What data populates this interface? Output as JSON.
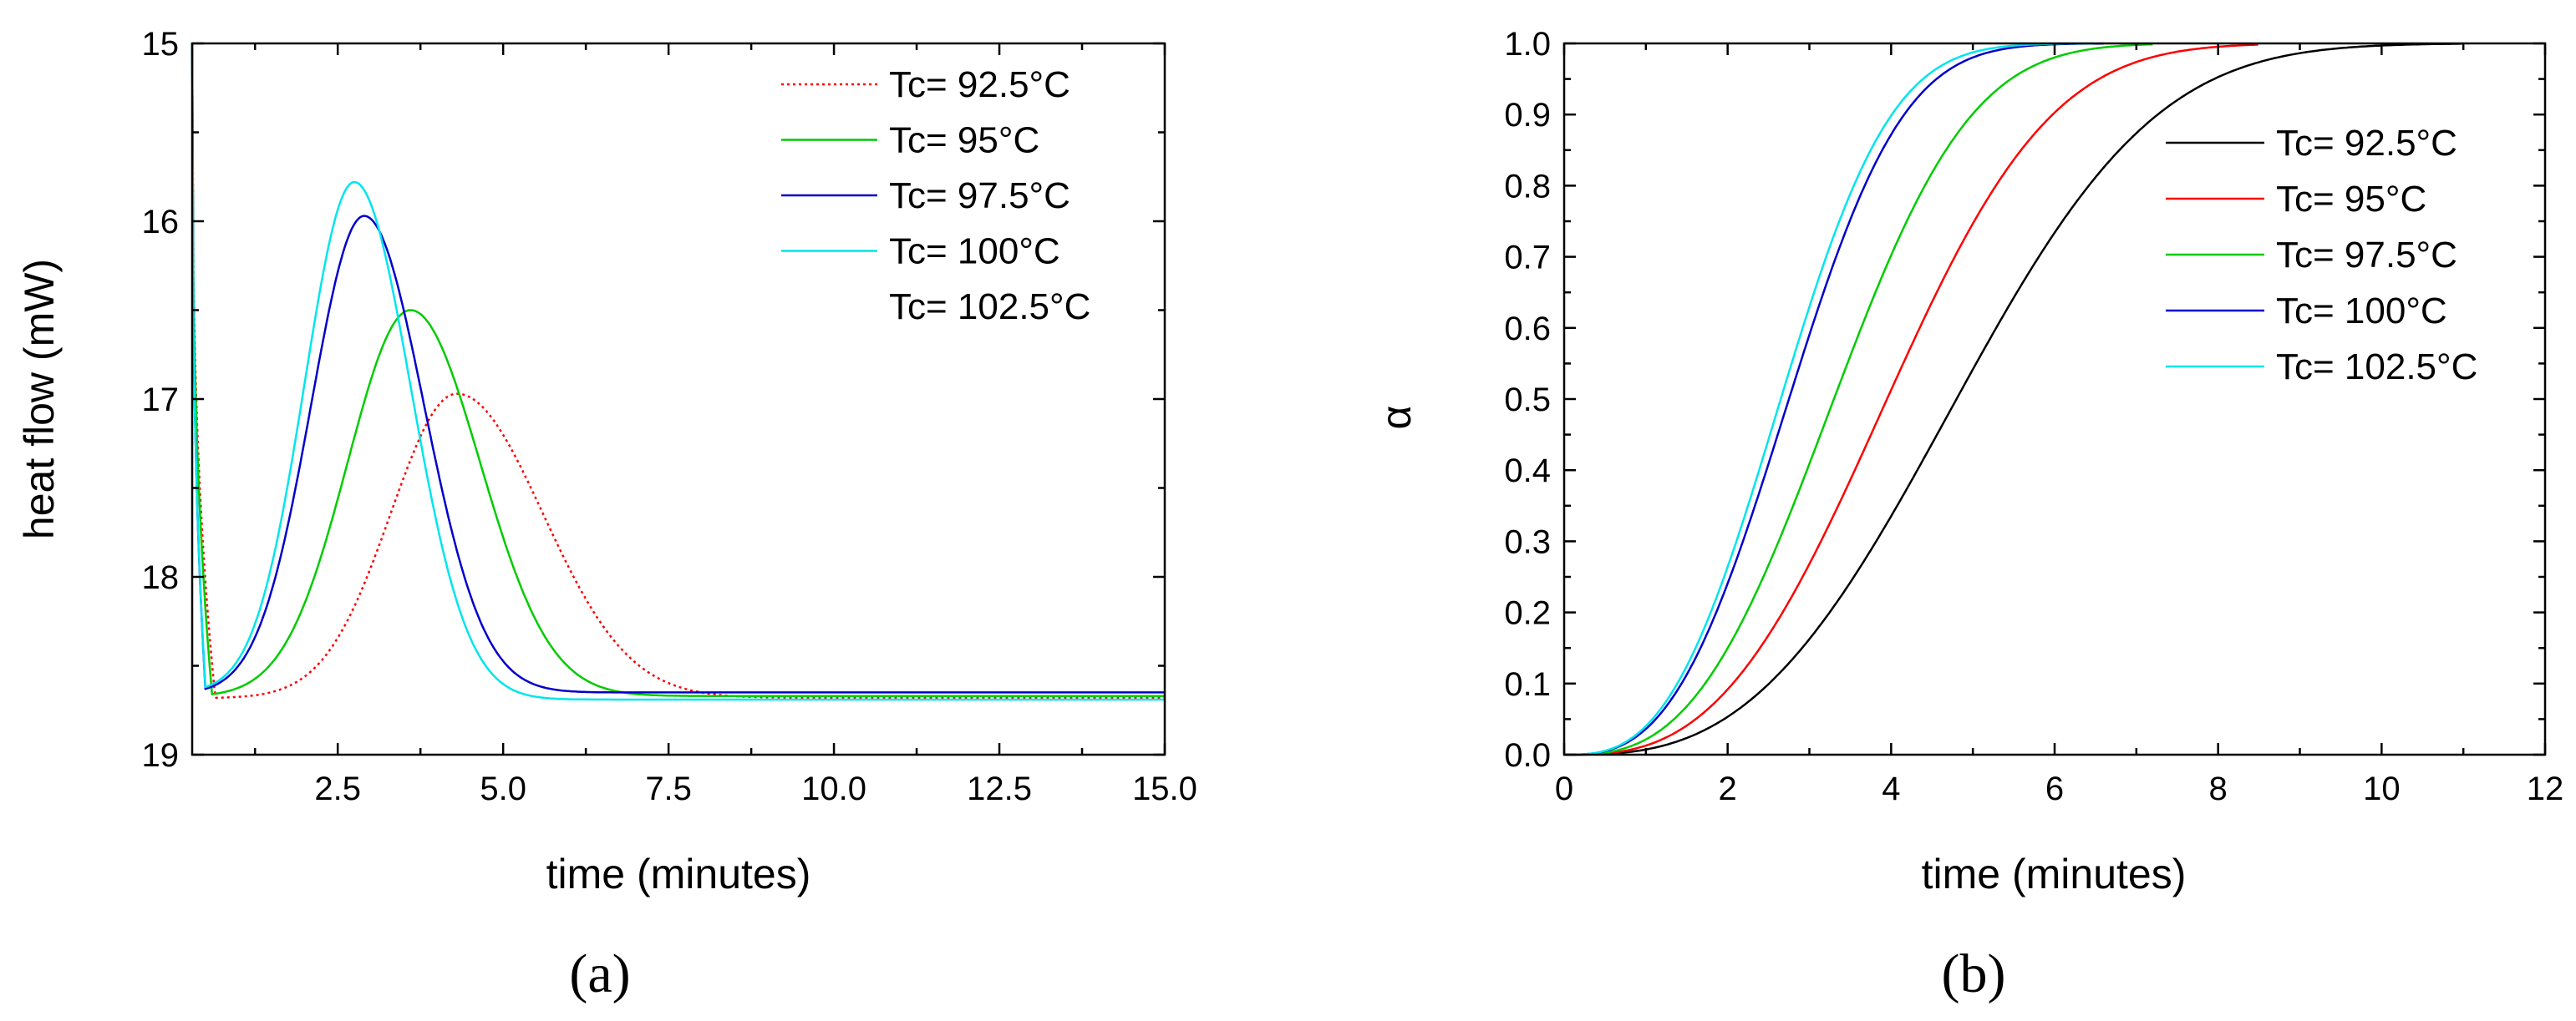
{
  "chart_data": [
    {
      "type": "line",
      "panel_label": "(a)",
      "xlabel": "time (minutes)",
      "ylabel": "heat flow (mW)",
      "xlim": [
        0.3,
        15.0
      ],
      "ylim": [
        15,
        19
      ],
      "y_inverted": true,
      "xticks": [
        2.5,
        5.0,
        7.5,
        10.0,
        12.5,
        15.0
      ],
      "xtick_labels": [
        "2.5",
        "5.0",
        "7.5",
        "10.0",
        "12.5",
        "15.0"
      ],
      "yticks": [
        15,
        16,
        17,
        18,
        19
      ],
      "ytick_labels": [
        "15",
        "16",
        "17",
        "18",
        "19"
      ],
      "legend_position": "top-right",
      "series": [
        {
          "name": "Tc= 92.5°C",
          "color": "#ff0000",
          "dash": "dotted",
          "peak_time": 4.3,
          "peak_value": 16.97,
          "min_time": 0.65,
          "min_value": 18.68,
          "baseline": 18.68,
          "sigma_left": 1.0,
          "sigma_right": 1.3
        },
        {
          "name": "Tc= 95°C",
          "color": "#00cc00",
          "dash": "solid",
          "peak_time": 3.6,
          "peak_value": 16.5,
          "min_time": 0.6,
          "min_value": 18.66,
          "baseline": 18.67,
          "sigma_left": 0.95,
          "sigma_right": 1.05
        },
        {
          "name": "Tc= 97.5°C",
          "color": "#0000cc",
          "dash": "solid",
          "peak_time": 2.9,
          "peak_value": 15.97,
          "min_time": 0.5,
          "min_value": 18.63,
          "baseline": 18.65,
          "sigma_left": 0.8,
          "sigma_right": 0.9
        },
        {
          "name": "Tc= 100°C",
          "color": "#00e5ee",
          "dash": "solid",
          "peak_time": 2.75,
          "peak_value": 15.78,
          "min_time": 0.5,
          "min_value": 18.62,
          "baseline": 18.69,
          "sigma_left": 0.75,
          "sigma_right": 0.85
        },
        {
          "name": "Tc= 102.5°C",
          "color": "",
          "dash": "none"
        }
      ]
    },
    {
      "type": "line",
      "panel_label": "(b)",
      "xlabel": "time (minutes)",
      "ylabel": "α",
      "xlim": [
        0,
        12
      ],
      "ylim": [
        0.0,
        1.0
      ],
      "xticks": [
        0,
        2,
        4,
        6,
        8,
        10,
        12
      ],
      "xtick_labels": [
        "0",
        "2",
        "4",
        "6",
        "8",
        "10",
        "12"
      ],
      "yticks": [
        0.0,
        0.1,
        0.2,
        0.3,
        0.4,
        0.5,
        0.6,
        0.7,
        0.8,
        0.9,
        1.0
      ],
      "ytick_labels": [
        "0.0",
        "0.1",
        "0.2",
        "0.3",
        "0.4",
        "0.5",
        "0.6",
        "0.7",
        "0.8",
        "0.9",
        "1.0"
      ],
      "legend_position": "right",
      "series": [
        {
          "name": "Tc= 92.5°C",
          "color": "#000000",
          "half_time": 4.8,
          "avrami_n": 2.9,
          "end_time": 11.0
        },
        {
          "name": "Tc= 95°C",
          "color": "#ff0000",
          "half_time": 3.95,
          "avrami_n": 2.9,
          "end_time": 8.5
        },
        {
          "name": "Tc= 97.5°C",
          "color": "#00cc00",
          "half_time": 3.3,
          "avrami_n": 2.9,
          "end_time": 7.2
        },
        {
          "name": "Tc= 100°C",
          "color": "#0000cc",
          "half_time": 2.75,
          "avrami_n": 2.9,
          "end_time": 6.6
        },
        {
          "name": "Tc= 102.5°C",
          "color": "#00e5ee",
          "half_time": 2.65,
          "avrami_n": 2.9,
          "end_time": 6.5
        }
      ]
    }
  ]
}
